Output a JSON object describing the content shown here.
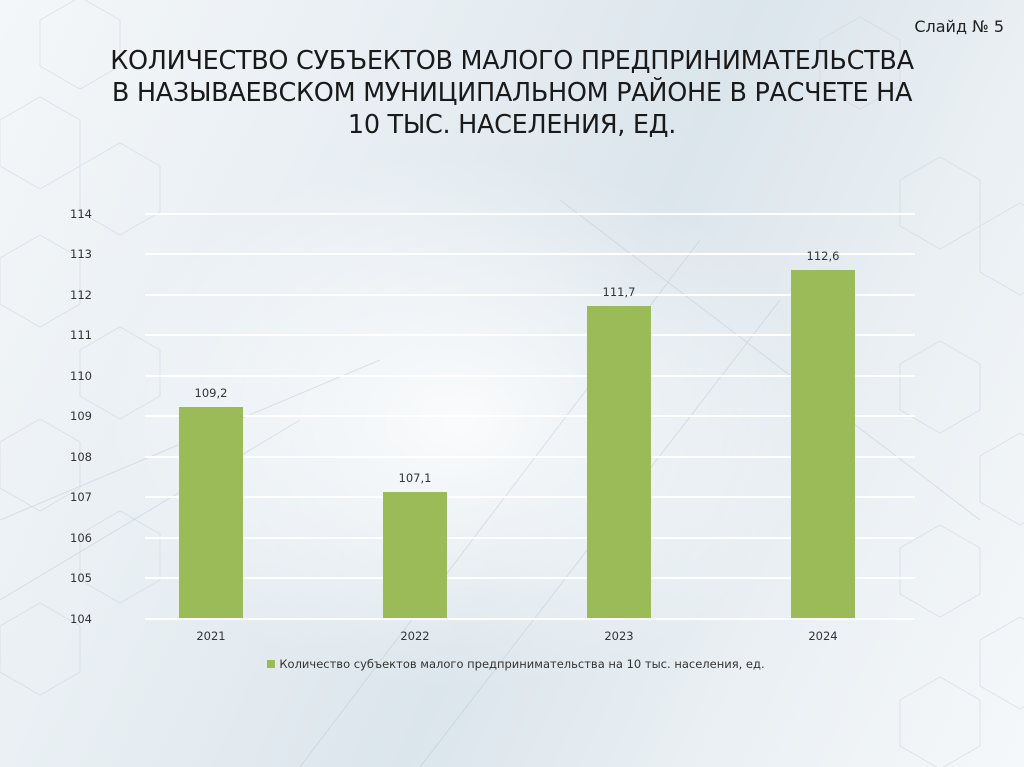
{
  "slide": {
    "number_label": "Слайд № 5",
    "title": "КОЛИЧЕСТВО СУБЪЕКТОВ МАЛОГО ПРЕДПРИНИМАТЕЛЬСТВА В НАЗЫВАЕВСКОМ МУНИЦИПАЛЬНОМ РАЙОНЕ В РАСЧЕТЕ НА 10 ТЫС. НАСЕЛЕНИЯ, ЕД."
  },
  "colors": {
    "bar": "#9bbb59",
    "grid": "#ffffff",
    "text": "#333333"
  },
  "chart_data": {
    "type": "bar",
    "title": "Количество субъектов малого предпринимательства в Называевском муниципальном районе в расчете на 10 тыс. населения, ед.",
    "categories": [
      "2021",
      "2022",
      "2023",
      "2024"
    ],
    "series": [
      {
        "name": "Количество субъектов малого предпринимательства на 10 тыс. населения, ед.",
        "values": [
          109.2,
          107.1,
          111.7,
          112.6
        ],
        "labels": [
          "109,2",
          "107,1",
          "111,7",
          "112,6"
        ]
      }
    ],
    "xlabel": "",
    "ylabel": "",
    "ylim": [
      104,
      114
    ],
    "yticks": [
      "104",
      "105",
      "106",
      "107",
      "108",
      "109",
      "110",
      "111",
      "112",
      "113",
      "114"
    ],
    "grid": true,
    "legend_position": "bottom"
  }
}
